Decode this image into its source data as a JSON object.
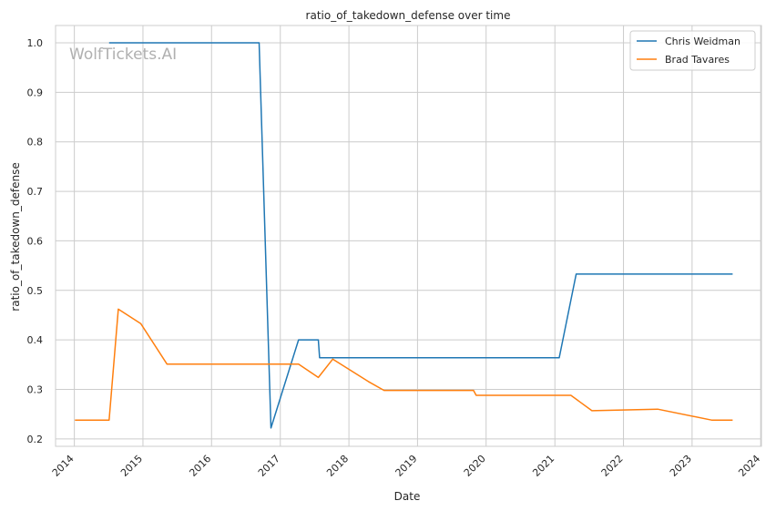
{
  "chart_data": {
    "type": "line",
    "title": "ratio_of_takedown_defense over time",
    "xlabel": "Date",
    "ylabel": "ratio_of_takedown_defense",
    "watermark": "WolfTickets.AI",
    "x_type": "date",
    "xlim": [
      "2013-09-23",
      "2024-01-05"
    ],
    "ylim": [
      0.185,
      1.035
    ],
    "x_ticks": [
      "2014",
      "2015",
      "2016",
      "2017",
      "2018",
      "2019",
      "2020",
      "2021",
      "2022",
      "2023",
      "2024"
    ],
    "y_ticks": [
      "0.2",
      "0.3",
      "0.4",
      "0.5",
      "0.6",
      "0.7",
      "0.8",
      "0.9",
      "1.0"
    ],
    "grid": true,
    "legend_position": "top-right",
    "series": [
      {
        "name": "Chris Weidman",
        "color": "#1f77b4",
        "points": [
          [
            "2014-07-05",
            1.0
          ],
          [
            "2016-09-10",
            1.0
          ],
          [
            "2016-11-12",
            0.222
          ],
          [
            "2017-04-08",
            0.4
          ],
          [
            "2017-07-22",
            0.4
          ],
          [
            "2017-07-29",
            0.364
          ],
          [
            "2021-01-24",
            0.364
          ],
          [
            "2021-04-24",
            0.533
          ],
          [
            "2023-08-05",
            0.533
          ]
        ]
      },
      {
        "name": "Brad Tavares",
        "color": "#ff7f0e",
        "points": [
          [
            "2014-01-04",
            0.238
          ],
          [
            "2014-07-05",
            0.238
          ],
          [
            "2014-08-23",
            0.462
          ],
          [
            "2014-12-20",
            0.433
          ],
          [
            "2015-05-09",
            0.351
          ],
          [
            "2017-04-08",
            0.351
          ],
          [
            "2017-07-22",
            0.324
          ],
          [
            "2017-10-07",
            0.361
          ],
          [
            "2018-04-14",
            0.316
          ],
          [
            "2018-07-07",
            0.298
          ],
          [
            "2019-10-26",
            0.298
          ],
          [
            "2019-11-09",
            0.288
          ],
          [
            "2021-03-27",
            0.288
          ],
          [
            "2021-07-17",
            0.257
          ],
          [
            "2022-07-02",
            0.26
          ],
          [
            "2023-04-15",
            0.238
          ],
          [
            "2023-08-05",
            0.238
          ]
        ]
      }
    ]
  }
}
